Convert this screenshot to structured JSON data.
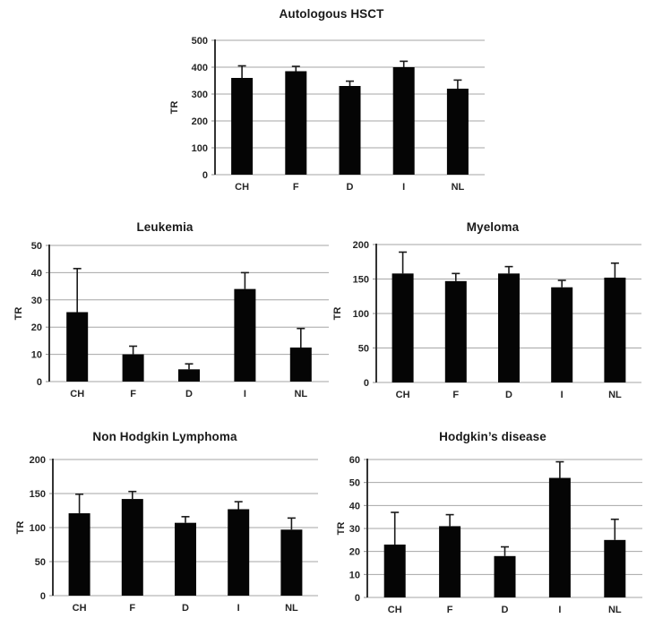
{
  "figure": {
    "background": "#ffffff",
    "description": "Five black bar charts with error bars comparing TR across countries"
  },
  "colors": {
    "bar": "#050505",
    "grid": "#a6a6a6",
    "axis": "#333333",
    "tick": "#8c8c8c",
    "error": "#1a1a1a",
    "text": "#262626",
    "title": "#1a1a1a"
  },
  "chart_data": [
    {
      "type": "bar",
      "title": "Autologous HSCT",
      "ylabel": "TR",
      "xlabel": "",
      "categories": [
        "CH",
        "F",
        "D",
        "I",
        "NL"
      ],
      "values": [
        360,
        385,
        330,
        400,
        320
      ],
      "errors_plus": [
        45,
        18,
        18,
        22,
        32
      ],
      "ylim": [
        0,
        500
      ],
      "yticks": [
        0,
        100,
        200,
        300,
        400,
        500
      ],
      "grid": true,
      "legend": false
    },
    {
      "type": "bar",
      "title": "Leukemia",
      "ylabel": "TR",
      "xlabel": "",
      "categories": [
        "CH",
        "F",
        "D",
        "I",
        "NL"
      ],
      "values": [
        25.5,
        10,
        4.5,
        34,
        12.5
      ],
      "errors_plus": [
        16,
        3,
        2,
        6,
        7
      ],
      "ylim": [
        0,
        50
      ],
      "yticks": [
        0,
        10,
        20,
        30,
        40,
        50
      ],
      "grid": true,
      "legend": false
    },
    {
      "type": "bar",
      "title": "Myeloma",
      "ylabel": "TR",
      "xlabel": "",
      "categories": [
        "CH",
        "F",
        "D",
        "I",
        "NL"
      ],
      "values": [
        158,
        147,
        158,
        138,
        152
      ],
      "errors_plus": [
        31,
        11,
        10,
        10,
        21
      ],
      "ylim": [
        0,
        200
      ],
      "yticks": [
        0,
        50,
        100,
        150,
        200
      ],
      "grid": true,
      "legend": false
    },
    {
      "type": "bar",
      "title": "Non Hodgkin Lymphoma",
      "ylabel": "TR",
      "xlabel": "",
      "categories": [
        "CH",
        "F",
        "D",
        "I",
        "NL"
      ],
      "values": [
        121,
        142,
        107,
        127,
        97
      ],
      "errors_plus": [
        28,
        11,
        9,
        11,
        17
      ],
      "ylim": [
        0,
        200
      ],
      "yticks": [
        0,
        50,
        100,
        150,
        200
      ],
      "grid": true,
      "legend": false
    },
    {
      "type": "bar",
      "title": "Hodgkin’s disease",
      "ylabel": "TR",
      "xlabel": "",
      "categories": [
        "CH",
        "F",
        "D",
        "I",
        "NL"
      ],
      "values": [
        23,
        31,
        18,
        52,
        25
      ],
      "errors_plus": [
        14,
        5,
        4,
        7,
        9
      ],
      "ylim": [
        0,
        60
      ],
      "yticks": [
        0,
        10,
        20,
        30,
        40,
        50,
        60
      ],
      "grid": true,
      "legend": false
    }
  ]
}
